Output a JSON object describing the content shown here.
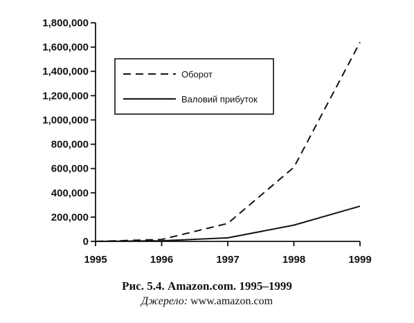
{
  "chart_data": {
    "type": "line",
    "x": [
      1995,
      1996,
      1997,
      1998,
      1999
    ],
    "xticks": [
      "1995",
      "1996",
      "1997",
      "1998",
      "1999"
    ],
    "xlim": [
      1995,
      1999
    ],
    "ylim": [
      0,
      1800000
    ],
    "yticks": [
      "0",
      "200,000",
      "400,000",
      "600,000",
      "800,000",
      "1,000,000",
      "1,200,000",
      "1,400,000",
      "1,600,000",
      "1,800,000"
    ],
    "ytick_values": [
      0,
      200000,
      400000,
      600000,
      800000,
      1000000,
      1200000,
      1400000,
      1600000,
      1800000
    ],
    "series": [
      {
        "name": "Оборот",
        "style": "dashed",
        "values": [
          0,
          16000,
          148000,
          610000,
          1640000
        ]
      },
      {
        "name": "Валовий прибуток",
        "style": "solid",
        "values": [
          0,
          5000,
          29000,
          134000,
          290000
        ]
      }
    ],
    "legend_position": "top-left, inset",
    "grid": false,
    "line_color": "#111111"
  },
  "caption": {
    "title": "Рис. 5.4. Amazon.com. 1995–1999",
    "source_label": "Джерело:",
    "source_value": "www.amazon.com"
  }
}
